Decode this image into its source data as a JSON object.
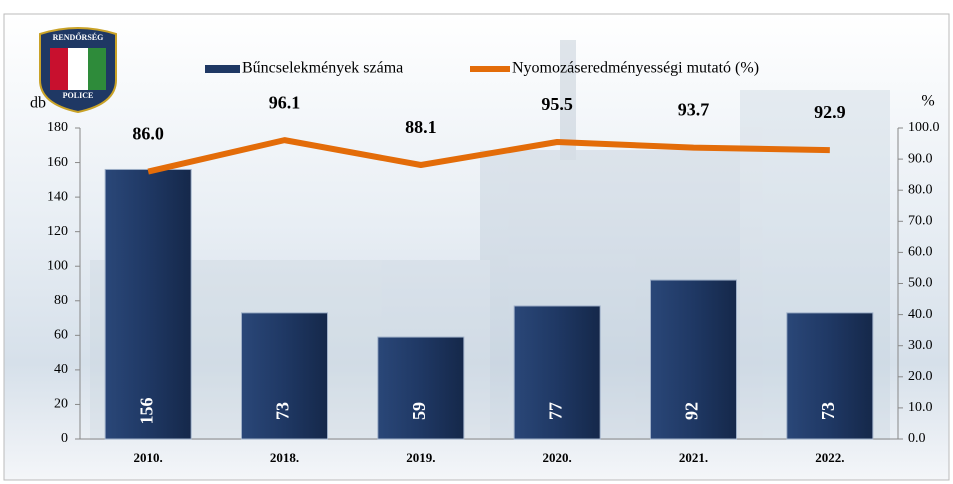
{
  "logo": {
    "top": "RENDŐRSÉG",
    "bottom": "POLICE"
  },
  "chart_data": {
    "type": "bar-line",
    "ylabel": "db",
    "y2label": "%",
    "categories": [
      "2010.",
      "2018.",
      "2019.",
      "2020.",
      "2021.",
      "2022."
    ],
    "series": [
      {
        "name": "Bűncselekmények száma",
        "color": "#1f3864",
        "type": "bar",
        "values": [
          156,
          73,
          59,
          77,
          92,
          73
        ]
      },
      {
        "name": "Nyomozáseredményességi mutató (%)",
        "color": "#e36c09",
        "type": "line",
        "axis": "y2",
        "values": [
          86,
          96.1,
          88.1,
          95.5,
          93.7,
          92.9
        ],
        "value_labels": [
          "86.0",
          "96.1",
          "88.1",
          "95.5",
          "93.7",
          "92.9"
        ]
      }
    ],
    "ylim": [
      0,
      180
    ],
    "yticks": [
      0,
      20,
      40,
      60,
      80,
      100,
      120,
      140,
      160,
      180
    ],
    "y2lim": [
      0,
      100
    ],
    "y2ticks": [
      {
        "value": 0,
        "label": "0.0"
      },
      {
        "value": 10,
        "label": "10.0"
      },
      {
        "value": 20,
        "label": "20.0"
      },
      {
        "value": 30,
        "label": "30.0"
      },
      {
        "value": 40,
        "label": "40.0"
      },
      {
        "value": 50,
        "label": "50.0"
      },
      {
        "value": 60,
        "label": "60.0"
      },
      {
        "value": 70,
        "label": "70.0"
      },
      {
        "value": 80,
        "label": "80.0"
      },
      {
        "value": 90,
        "label": "90.0"
      },
      {
        "value": 100,
        "label": "100.0"
      }
    ],
    "legend": "top"
  }
}
